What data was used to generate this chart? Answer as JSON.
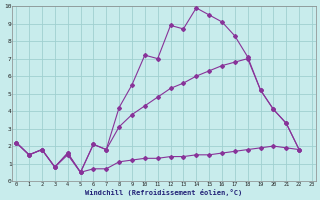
{
  "bg_color": "#c8ecec",
  "grid_color": "#a0d0d0",
  "line_color": "#883399",
  "xlabel": "Windchill (Refroidissement éolien,°C)",
  "xlim_min": 0,
  "xlim_max": 23,
  "ylim_min": 0,
  "ylim_max": 10,
  "xticks": [
    0,
    1,
    2,
    3,
    4,
    5,
    6,
    7,
    8,
    9,
    10,
    11,
    12,
    13,
    14,
    15,
    16,
    17,
    18,
    19,
    20,
    21,
    22,
    23
  ],
  "yticks": [
    0,
    1,
    2,
    3,
    4,
    5,
    6,
    7,
    8,
    9,
    10
  ],
  "line1_x": [
    0,
    1,
    2,
    3,
    4,
    5,
    6,
    7,
    8,
    9,
    10,
    11,
    12,
    13,
    14,
    15,
    16,
    17,
    18,
    19,
    20,
    21,
    22
  ],
  "line1_y": [
    2.2,
    1.5,
    1.8,
    0.8,
    1.6,
    0.5,
    2.1,
    1.8,
    4.2,
    5.5,
    7.2,
    7.0,
    8.9,
    8.7,
    9.9,
    9.5,
    9.1,
    8.3,
    7.1,
    5.2,
    4.1,
    3.3,
    1.8
  ],
  "line2_x": [
    0,
    1,
    2,
    3,
    4,
    5,
    6,
    7,
    8,
    9,
    10,
    11,
    12,
    13,
    14,
    15,
    16,
    17,
    18,
    19,
    20,
    21,
    22
  ],
  "line2_y": [
    2.2,
    1.5,
    1.8,
    0.8,
    1.6,
    0.5,
    2.1,
    1.8,
    3.1,
    3.8,
    4.3,
    4.8,
    5.3,
    5.6,
    6.0,
    6.3,
    6.6,
    6.8,
    7.0,
    5.2,
    4.1,
    3.3,
    1.8
  ],
  "line3_x": [
    0,
    1,
    2,
    3,
    4,
    5,
    6,
    7,
    8,
    9,
    10,
    11,
    12,
    13,
    14,
    15,
    16,
    17,
    18,
    19,
    20,
    21,
    22
  ],
  "line3_y": [
    2.2,
    1.5,
    1.8,
    0.8,
    1.5,
    0.5,
    0.7,
    0.7,
    1.1,
    1.2,
    1.3,
    1.3,
    1.4,
    1.4,
    1.5,
    1.5,
    1.6,
    1.7,
    1.8,
    1.9,
    2.0,
    1.9,
    1.8
  ]
}
